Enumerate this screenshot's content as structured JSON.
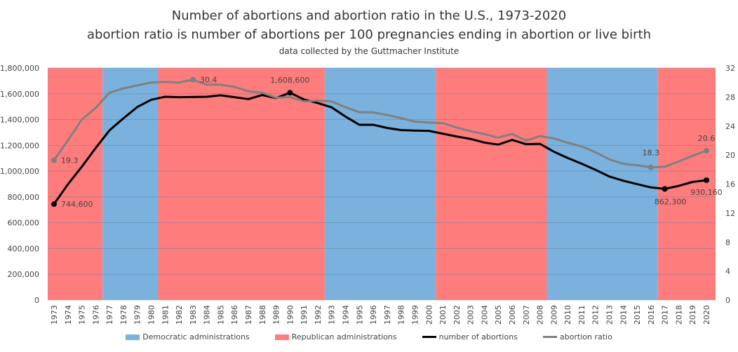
{
  "chart_data": {
    "type": "line",
    "title": "Number of abortions and abortion ratio in the U.S., 1973-2020",
    "subtitle": "abortion ratio is number of abortions per 100 pregnancies ending in abortion or live birth",
    "source": "data collected by the Guttmacher Institute",
    "x": [
      1973,
      1974,
      1975,
      1976,
      1977,
      1978,
      1979,
      1980,
      1981,
      1982,
      1983,
      1984,
      1985,
      1986,
      1987,
      1988,
      1989,
      1990,
      1991,
      1992,
      1993,
      1994,
      1995,
      1996,
      1997,
      1998,
      1999,
      2000,
      2001,
      2002,
      2003,
      2004,
      2005,
      2006,
      2007,
      2008,
      2009,
      2010,
      2011,
      2012,
      2013,
      2014,
      2015,
      2016,
      2017,
      2018,
      2019,
      2020
    ],
    "series": [
      {
        "name": "number of abortions",
        "axis": "left",
        "color": "#000000",
        "values": [
          744600,
          898600,
          1034200,
          1179300,
          1316700,
          1409600,
          1497700,
          1553900,
          1577300,
          1573900,
          1575000,
          1577200,
          1588600,
          1574000,
          1559100,
          1590800,
          1566900,
          1608600,
          1556500,
          1528900,
          1495000,
          1423000,
          1359400,
          1360200,
          1335000,
          1319000,
          1314800,
          1312990,
          1291000,
          1269000,
          1250000,
          1222100,
          1206200,
          1242200,
          1209600,
          1212350,
          1151600,
          1102670,
          1058490,
          1011000,
          958700,
          926200,
          899500,
          874100,
          862300,
          885800,
          916500,
          930160
        ],
        "labels": [
          {
            "year": 1973,
            "text": "744,600"
          },
          {
            "year": 1990,
            "text": "1,608,600"
          },
          {
            "year": 2017,
            "text": "862,300"
          },
          {
            "year": 2020,
            "text": "930,160"
          }
        ]
      },
      {
        "name": "abortion ratio",
        "axis": "right",
        "color": "#808080",
        "values": [
          19.3,
          22.0,
          24.9,
          26.5,
          28.6,
          29.2,
          29.6,
          30.0,
          30.1,
          30.0,
          30.4,
          29.7,
          29.7,
          29.4,
          28.8,
          28.6,
          27.9,
          28.0,
          27.4,
          27.5,
          27.4,
          26.6,
          25.9,
          25.9,
          25.5,
          25.1,
          24.6,
          24.5,
          24.4,
          23.8,
          23.3,
          22.9,
          22.4,
          22.9,
          22.0,
          22.6,
          22.3,
          21.7,
          21.2,
          20.4,
          19.4,
          18.8,
          18.6,
          18.3,
          18.4,
          19.1,
          19.9,
          20.6
        ],
        "labels": [
          {
            "year": 1973,
            "text": "19.3"
          },
          {
            "year": 1983,
            "text": "30.4"
          },
          {
            "year": 2016,
            "text": "18.3"
          },
          {
            "year": 2020,
            "text": "20.6"
          }
        ]
      }
    ],
    "administrations": [
      {
        "party": "Republican",
        "from": 1973,
        "to": 1976
      },
      {
        "party": "Democratic",
        "from": 1977,
        "to": 1980
      },
      {
        "party": "Republican",
        "from": 1981,
        "to": 1992
      },
      {
        "party": "Democratic",
        "from": 1993,
        "to": 2000
      },
      {
        "party": "Republican",
        "from": 2001,
        "to": 2008
      },
      {
        "party": "Democratic",
        "from": 2009,
        "to": 2016
      },
      {
        "party": "Republican",
        "from": 2017,
        "to": 2020
      }
    ],
    "colors": {
      "Democratic": "#7ab1dd",
      "Republican": "#ff7c7c"
    },
    "y_left": {
      "ylim": [
        0,
        1800000
      ],
      "ticks": [
        "0",
        "200,000",
        "400,000",
        "600,000",
        "800,000",
        "1,000,000",
        "1,200,000",
        "1,400,000",
        "1,600,000",
        "1,800,000"
      ]
    },
    "y_right": {
      "ylim": [
        0,
        32
      ],
      "ticks": [
        "0",
        "4",
        "8",
        "12",
        "16",
        "20",
        "24",
        "28",
        "32"
      ]
    },
    "grid": true,
    "legend": {
      "position": "bottom",
      "items": [
        "Democratic administrations",
        "Republican administrations",
        "number of abortions",
        "abortion ratio"
      ]
    }
  }
}
